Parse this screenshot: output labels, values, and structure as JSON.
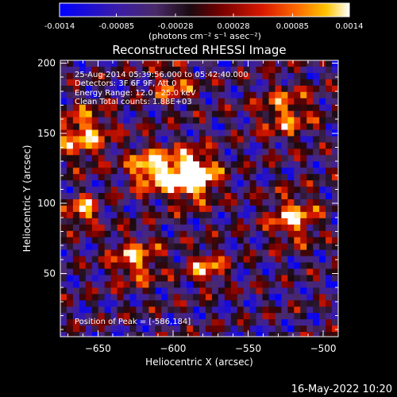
{
  "colorbar": {
    "tick_labels": [
      "-0.0014",
      "-0.00085",
      "-0.00028",
      "0.00028",
      "0.00085",
      "0.0014"
    ],
    "range": [
      -0.0014,
      0.0014
    ],
    "units_label": "(photons cm⁻² s⁻¹ asec⁻²)"
  },
  "chart_data": {
    "type": "heatmap",
    "title": "Reconstructed RHESSI Image",
    "xlabel": "Heliocentric X (arcsec)",
    "ylabel": "Heliocentric Y (arcsec)",
    "xlim": [
      -675,
      -490
    ],
    "ylim": [
      5,
      202
    ],
    "x_ticks": [
      -650,
      -600,
      -550,
      -500
    ],
    "y_ticks": [
      50,
      100,
      150,
      200
    ],
    "colormap": "blue-purple-black-red-orange-yellow-white",
    "annotations": {
      "time": "25-Aug-2014 05:39:56.000 to 05:42:40.000",
      "detectors": "Detectors: 3F 6F 9F, Att 0",
      "energy": "Energy Range: 12.0 - 25.0 keV",
      "method": "Clean   Total counts: 1.88E+03",
      "peak": "Position of Peak = [-586,184]"
    },
    "peak_position": [
      -586,
      184
    ]
  },
  "footer": {
    "date": "16-May-2022 10:20"
  }
}
